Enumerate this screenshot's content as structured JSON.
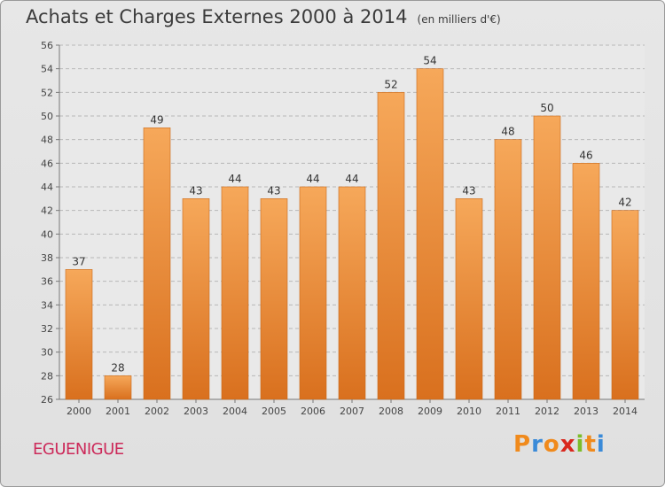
{
  "title": "Achats et Charges Externes 2000 à 2014",
  "unit_note": "(en milliers d'€)",
  "commune": "EGUENIGUE",
  "brand": {
    "letters": [
      "P",
      "r",
      "o",
      "x",
      "i",
      "t",
      "i"
    ],
    "colors": [
      "#f08a1c",
      "#3a8ad8",
      "#f08a1c",
      "#d9281e",
      "#7cbd2a",
      "#f08a1c",
      "#3a8ad8"
    ]
  },
  "colors": {
    "bar_top": "#f6a85a",
    "bar_bottom": "#d9701e",
    "grid": "#b8b8b8",
    "axis_text": "#444444",
    "label_text": "#333333"
  },
  "chart_data": {
    "type": "bar",
    "categories": [
      "2000",
      "2001",
      "2002",
      "2003",
      "2004",
      "2005",
      "2006",
      "2007",
      "2008",
      "2009",
      "2010",
      "2011",
      "2012",
      "2013",
      "2014"
    ],
    "values": [
      37,
      28,
      49,
      43,
      44,
      43,
      44,
      44,
      52,
      54,
      43,
      48,
      50,
      46,
      42
    ],
    "ylim": [
      26,
      56
    ],
    "yticks": [
      26,
      28,
      30,
      32,
      34,
      36,
      38,
      40,
      42,
      44,
      46,
      48,
      50,
      52,
      54,
      56
    ],
    "grid": true,
    "data_labels": true
  }
}
